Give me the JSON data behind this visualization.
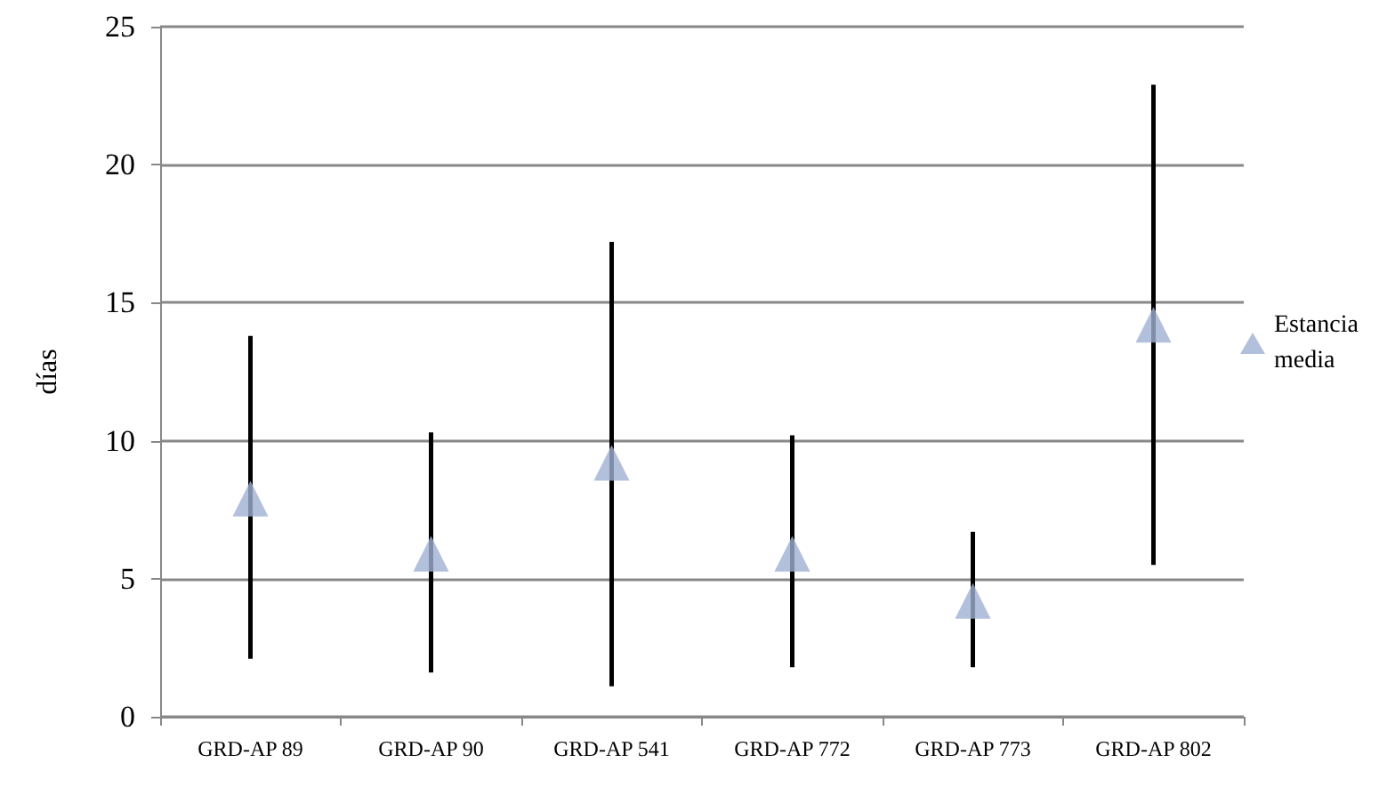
{
  "chart_data": {
    "type": "scatter",
    "ylabel": "días",
    "categories": [
      "GRD-AP 89",
      "GRD-AP 90",
      "GRD-AP 541",
      "GRD-AP 772",
      "GRD-AP 773",
      "GRD-AP 802"
    ],
    "series": [
      {
        "name": "Estancia media",
        "color": "#9fb0d3",
        "values": [
          7.9,
          5.9,
          9.2,
          5.9,
          4.2,
          14.2
        ],
        "errors": [
          [
            2.1,
            13.8
          ],
          [
            1.6,
            10.3
          ],
          [
            1.1,
            17.2
          ],
          [
            1.8,
            10.2
          ],
          [
            1.8,
            6.7
          ],
          [
            5.5,
            22.9
          ]
        ]
      }
    ],
    "ylim": [
      0,
      25
    ],
    "yticks": [
      0,
      5,
      10,
      15,
      20,
      25
    ],
    "grid": "y",
    "legend": "right",
    "marker": "triangle"
  }
}
